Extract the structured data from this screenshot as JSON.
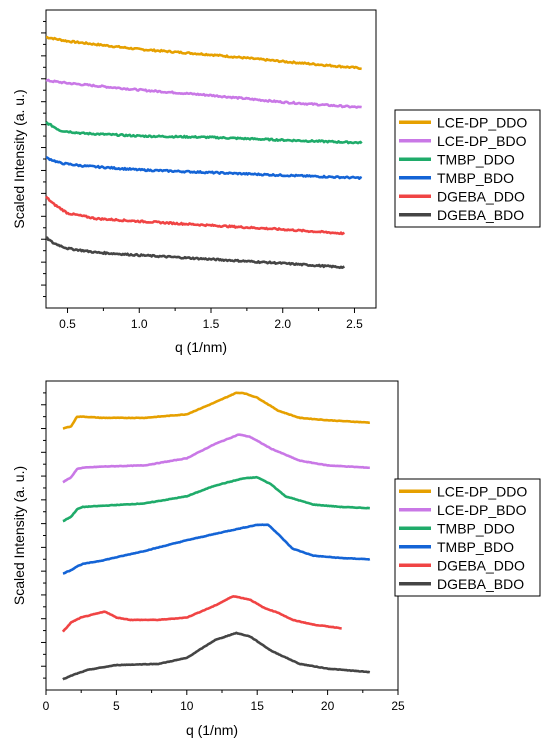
{
  "figure": {
    "panels": 2
  },
  "chart_data": [
    {
      "type": "line",
      "title": "",
      "xlabel": "q (1/nm)",
      "ylabel": "Scaled Intensity (a. u.)",
      "xlim": [
        0.35,
        2.65
      ],
      "ylim": [
        0,
        11
      ],
      "x_ticks": [
        0.5,
        1.0,
        1.5,
        2.0,
        2.5
      ],
      "x_tick_labels": [
        "0.5",
        "1.0",
        "1.5",
        "2.0",
        "2.5"
      ],
      "y_tick_labels_shown": false,
      "grid": false,
      "legend_position": "right",
      "series": [
        {
          "name": "LCE-DP_DDO",
          "color": "#E6A000",
          "x": [
            0.35,
            0.5,
            1.0,
            1.5,
            2.0,
            2.55
          ],
          "values": [
            10.0,
            9.85,
            9.55,
            9.35,
            9.1,
            8.85
          ]
        },
        {
          "name": "LCE-DP_BDO",
          "color": "#C978E6",
          "x": [
            0.35,
            0.5,
            1.0,
            1.5,
            2.0,
            2.55
          ],
          "values": [
            8.4,
            8.3,
            8.05,
            7.85,
            7.6,
            7.4
          ]
        },
        {
          "name": "TMBP_DDO",
          "color": "#1FAB6A",
          "x": [
            0.35,
            0.45,
            0.6,
            1.0,
            1.5,
            2.0,
            2.55
          ],
          "values": [
            6.85,
            6.55,
            6.45,
            6.35,
            6.3,
            6.2,
            6.1
          ]
        },
        {
          "name": "TMBP_BDO",
          "color": "#1464D6",
          "x": [
            0.35,
            0.45,
            0.6,
            1.0,
            1.5,
            2.0,
            2.55
          ],
          "values": [
            5.55,
            5.35,
            5.25,
            5.1,
            5.0,
            4.9,
            4.8
          ]
        },
        {
          "name": "DGEBA_DDO",
          "color": "#F04444",
          "x": [
            0.35,
            0.4,
            0.5,
            0.7,
            1.0,
            1.5,
            2.0,
            2.43
          ],
          "values": [
            4.1,
            3.85,
            3.5,
            3.3,
            3.2,
            3.05,
            2.9,
            2.75
          ]
        },
        {
          "name": "DGEBA_BDO",
          "color": "#454545",
          "x": [
            0.35,
            0.4,
            0.5,
            0.7,
            1.0,
            1.5,
            2.0,
            2.43
          ],
          "values": [
            2.6,
            2.4,
            2.2,
            2.05,
            1.95,
            1.8,
            1.65,
            1.5
          ]
        }
      ]
    },
    {
      "type": "line",
      "title": "",
      "xlabel": "q (1/nm)",
      "ylabel": "Scaled Intensity (a. u.)",
      "xlim": [
        0,
        25
      ],
      "ylim": [
        0,
        13
      ],
      "x_ticks": [
        0,
        5,
        10,
        15,
        20,
        25
      ],
      "x_tick_labels": [
        "0",
        "5",
        "10",
        "15",
        "20",
        "25"
      ],
      "y_tick_labels_shown": false,
      "grid": false,
      "legend_position": "right",
      "series": [
        {
          "name": "LCE-DP_DDO",
          "color": "#E6A000",
          "x": [
            1.2,
            1.8,
            2.2,
            2.6,
            4,
            7,
            10,
            12,
            13.5,
            14,
            15,
            16.5,
            18,
            20,
            23
          ],
          "values": [
            11.0,
            11.1,
            11.5,
            11.5,
            11.45,
            11.45,
            11.6,
            12.1,
            12.5,
            12.5,
            12.3,
            11.75,
            11.45,
            11.35,
            11.25
          ]
        },
        {
          "name": "LCE-DP_BDO",
          "color": "#C978E6",
          "x": [
            1.2,
            1.8,
            2.2,
            2.6,
            4,
            7,
            10,
            12,
            13.7,
            14.5,
            16,
            18,
            20,
            23
          ],
          "values": [
            8.75,
            8.95,
            9.3,
            9.35,
            9.4,
            9.45,
            9.75,
            10.35,
            10.75,
            10.65,
            10.15,
            9.65,
            9.45,
            9.35
          ]
        },
        {
          "name": "TMBP_DDO",
          "color": "#1FAB6A",
          "x": [
            1.2,
            1.8,
            2.2,
            2.6,
            4,
            7,
            10,
            12,
            14,
            15,
            16,
            17,
            19,
            21,
            23
          ],
          "values": [
            7.1,
            7.3,
            7.6,
            7.7,
            7.75,
            7.85,
            8.15,
            8.6,
            8.9,
            8.95,
            8.65,
            8.15,
            7.8,
            7.7,
            7.65
          ]
        },
        {
          "name": "TMBP_BDO",
          "color": "#1464D6",
          "x": [
            1.2,
            1.8,
            2.2,
            2.6,
            4,
            7,
            10,
            13,
            15,
            15.8,
            16.5,
            17.5,
            19,
            21,
            23
          ],
          "values": [
            4.9,
            5.05,
            5.2,
            5.3,
            5.45,
            5.85,
            6.3,
            6.7,
            6.95,
            6.95,
            6.55,
            5.95,
            5.65,
            5.55,
            5.5
          ]
        },
        {
          "name": "DGEBA_DDO",
          "color": "#F04444",
          "x": [
            1.2,
            1.8,
            2.5,
            3.5,
            4.2,
            5,
            6,
            8,
            10,
            12,
            13.3,
            14.5,
            15.5,
            16.5,
            17.5,
            19,
            21
          ],
          "values": [
            2.45,
            2.85,
            3.05,
            3.2,
            3.3,
            3.05,
            2.95,
            2.95,
            3.05,
            3.55,
            3.95,
            3.8,
            3.45,
            3.25,
            2.95,
            2.75,
            2.6
          ]
        },
        {
          "name": "DGEBA_BDO",
          "color": "#454545",
          "x": [
            1.2,
            2,
            3,
            5,
            8,
            10,
            12,
            13.5,
            14.5,
            16,
            18,
            20,
            23
          ],
          "values": [
            0.45,
            0.65,
            0.85,
            1.05,
            1.1,
            1.35,
            2.1,
            2.4,
            2.25,
            1.65,
            1.1,
            0.9,
            0.75
          ]
        }
      ]
    }
  ]
}
